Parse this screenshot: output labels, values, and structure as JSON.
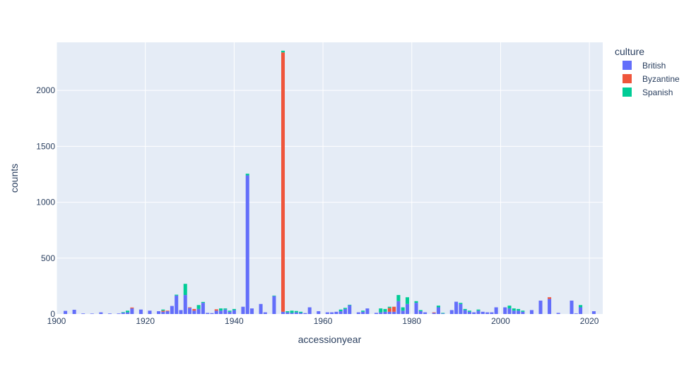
{
  "chart_data": {
    "type": "bar",
    "barmode": "stack",
    "xlabel": "accessionyear",
    "ylabel": "counts",
    "xlim": [
      1900,
      2023
    ],
    "ylim": [
      0,
      2430
    ],
    "x_ticks": [
      1900,
      1920,
      1940,
      1960,
      1980,
      2000,
      2020
    ],
    "y_ticks": [
      0,
      500,
      1000,
      1500,
      2000
    ],
    "grid": true,
    "legend": {
      "title": "culture",
      "placement": "right"
    },
    "series": [
      {
        "name": "British",
        "color": "#636efa",
        "points": [
          [
            1902,
            28
          ],
          [
            1904,
            38
          ],
          [
            1906,
            5
          ],
          [
            1908,
            4
          ],
          [
            1910,
            15
          ],
          [
            1912,
            5
          ],
          [
            1914,
            5
          ],
          [
            1915,
            12
          ],
          [
            1916,
            15
          ],
          [
            1917,
            50
          ],
          [
            1919,
            40
          ],
          [
            1921,
            30
          ],
          [
            1923,
            25
          ],
          [
            1924,
            20
          ],
          [
            1925,
            25
          ],
          [
            1926,
            72
          ],
          [
            1927,
            165
          ],
          [
            1928,
            35
          ],
          [
            1929,
            170
          ],
          [
            1930,
            55
          ],
          [
            1931,
            30
          ],
          [
            1932,
            45
          ],
          [
            1933,
            100
          ],
          [
            1934,
            10
          ],
          [
            1935,
            8
          ],
          [
            1936,
            30
          ],
          [
            1937,
            30
          ],
          [
            1938,
            40
          ],
          [
            1939,
            20
          ],
          [
            1940,
            35
          ],
          [
            1942,
            65
          ],
          [
            1943,
            1240
          ],
          [
            1944,
            50
          ],
          [
            1946,
            90
          ],
          [
            1947,
            15
          ],
          [
            1949,
            160
          ],
          [
            1951,
            20
          ],
          [
            1952,
            15
          ],
          [
            1953,
            10
          ],
          [
            1954,
            15
          ],
          [
            1955,
            10
          ],
          [
            1956,
            8
          ],
          [
            1957,
            60
          ],
          [
            1959,
            25
          ],
          [
            1961,
            15
          ],
          [
            1962,
            15
          ],
          [
            1963,
            20
          ],
          [
            1964,
            25
          ],
          [
            1965,
            45
          ],
          [
            1966,
            78
          ],
          [
            1968,
            15
          ],
          [
            1969,
            20
          ],
          [
            1970,
            50
          ],
          [
            1972,
            10
          ],
          [
            1973,
            15
          ],
          [
            1974,
            20
          ],
          [
            1975,
            20
          ],
          [
            1976,
            20
          ],
          [
            1977,
            115
          ],
          [
            1978,
            30
          ],
          [
            1979,
            90
          ],
          [
            1981,
            100
          ],
          [
            1982,
            25
          ],
          [
            1983,
            15
          ],
          [
            1985,
            10
          ],
          [
            1986,
            60
          ],
          [
            1987,
            5
          ],
          [
            1989,
            35
          ],
          [
            1990,
            110
          ],
          [
            1991,
            90
          ],
          [
            1992,
            35
          ],
          [
            1993,
            20
          ],
          [
            1994,
            15
          ],
          [
            1995,
            30
          ],
          [
            1996,
            20
          ],
          [
            1997,
            15
          ],
          [
            1998,
            15
          ],
          [
            1999,
            60
          ],
          [
            2001,
            60
          ],
          [
            2002,
            50
          ],
          [
            2003,
            30
          ],
          [
            2004,
            30
          ],
          [
            2005,
            20
          ],
          [
            2007,
            35
          ],
          [
            2009,
            120
          ],
          [
            2011,
            135
          ],
          [
            2013,
            10
          ],
          [
            2016,
            120
          ],
          [
            2017,
            5
          ],
          [
            2018,
            60
          ],
          [
            2021,
            25
          ]
        ]
      },
      {
        "name": "Byzantine",
        "color": "#ef553b",
        "points": [
          [
            1917,
            8
          ],
          [
            1924,
            10
          ],
          [
            1925,
            5
          ],
          [
            1930,
            5
          ],
          [
            1931,
            15
          ],
          [
            1936,
            12
          ],
          [
            1951,
            2320
          ],
          [
            1975,
            35
          ],
          [
            1976,
            45
          ],
          [
            1985,
            5
          ],
          [
            2011,
            15
          ]
        ]
      },
      {
        "name": "Spanish",
        "color": "#00cc96",
        "points": [
          [
            1915,
            5
          ],
          [
            1916,
            15
          ],
          [
            1924,
            10
          ],
          [
            1927,
            8
          ],
          [
            1929,
            100
          ],
          [
            1932,
            35
          ],
          [
            1933,
            8
          ],
          [
            1937,
            20
          ],
          [
            1938,
            10
          ],
          [
            1939,
            10
          ],
          [
            1940,
            10
          ],
          [
            1943,
            15
          ],
          [
            1949,
            5
          ],
          [
            1951,
            15
          ],
          [
            1952,
            10
          ],
          [
            1953,
            20
          ],
          [
            1954,
            12
          ],
          [
            1955,
            10
          ],
          [
            1964,
            15
          ],
          [
            1965,
            10
          ],
          [
            1966,
            5
          ],
          [
            1969,
            10
          ],
          [
            1973,
            35
          ],
          [
            1974,
            25
          ],
          [
            1975,
            10
          ],
          [
            1977,
            55
          ],
          [
            1978,
            30
          ],
          [
            1979,
            60
          ],
          [
            1981,
            15
          ],
          [
            1982,
            10
          ],
          [
            1986,
            15
          ],
          [
            1987,
            5
          ],
          [
            1991,
            10
          ],
          [
            1992,
            10
          ],
          [
            1993,
            10
          ],
          [
            1995,
            10
          ],
          [
            2002,
            25
          ],
          [
            2003,
            20
          ],
          [
            2004,
            15
          ],
          [
            2005,
            10
          ],
          [
            2018,
            20
          ]
        ]
      }
    ]
  }
}
